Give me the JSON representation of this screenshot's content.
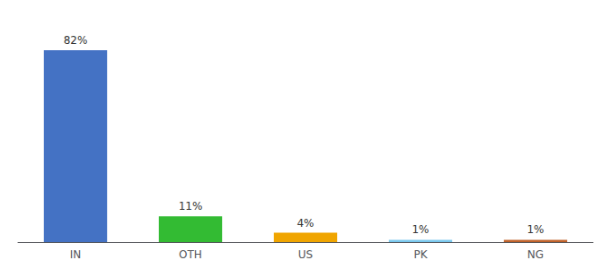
{
  "chart_data": {
    "type": "bar",
    "categories": [
      "IN",
      "OTH",
      "US",
      "PK",
      "NG"
    ],
    "values": [
      82,
      11,
      4,
      1,
      1
    ],
    "value_labels": [
      "82%",
      "11%",
      "4%",
      "1%",
      "1%"
    ],
    "colors": [
      "#4472c4",
      "#33bb33",
      "#f0a500",
      "#7ac8ee",
      "#c0622a"
    ],
    "ylim": [
      0,
      92
    ],
    "data_labels": true,
    "tick_labels": "x",
    "grid": false
  }
}
